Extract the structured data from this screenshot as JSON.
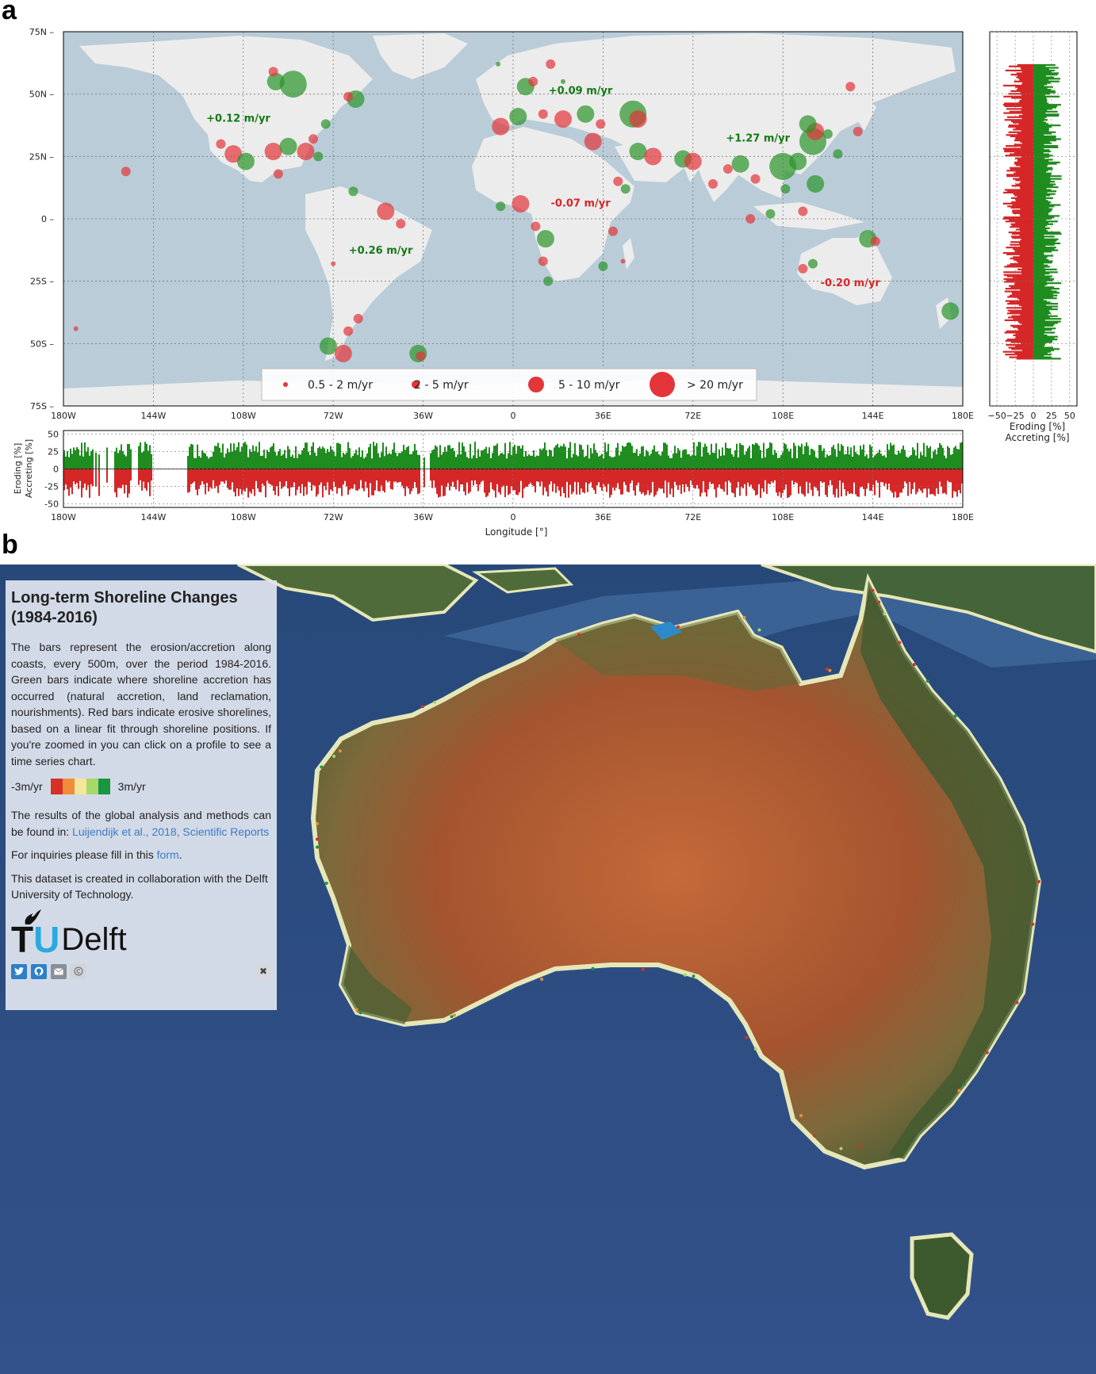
{
  "panel_a": {
    "letter": "a",
    "legend_items": [
      "0.5 - 2 m/yr",
      "2 - 5 m/yr",
      "5 - 10 m/yr",
      "> 20 m/yr"
    ],
    "map_lat_ticks": [
      "75N",
      "50N",
      "25N",
      "0",
      "25S",
      "50S",
      "75S"
    ],
    "map_lon_ticks": [
      "180W",
      "144W",
      "108W",
      "72W",
      "36W",
      "0",
      "36E",
      "72E",
      "108E",
      "144E",
      "180E"
    ],
    "colors": {
      "eroding": "#d62728",
      "accreting": "#1e8c1e",
      "ocean": "#b9ccd7",
      "land": "#ececec"
    }
  },
  "panel_b": {
    "letter": "b",
    "title": "Long-term Shoreline Changes (1984-2016)",
    "description": "The bars represent the erosion/accretion along coasts, every 500m, over the period 1984-2016. Green bars indicate where shoreline accretion has occurred (natural accretion, land reclamation, nourishments). Red bars indicate erosive shorelines, based on a linear fit through shoreline positions. If you're zoomed in you can click on a profile to see a time series chart.",
    "legend_min": "-3m/yr",
    "legend_max": "3m/yr",
    "legend_colors": [
      "#d73027",
      "#f08c3a",
      "#f5e69a",
      "#a6d96a",
      "#1a9641"
    ],
    "results_text": "The results of the global analysis and methods can be found in:",
    "results_link": "Luijendijk et al., 2018, Scientific Reports",
    "inquiries_text": "For inquiries please fill in this",
    "inquiries_link": "form",
    "inquiries_end": ".",
    "collab_text": "This dataset is created in collaboration with the Delft University of Technology.",
    "logo_t": "T",
    "logo_u": "U",
    "logo_delft": "Delft",
    "icons": [
      "twitter-icon",
      "github-icon",
      "mail-icon",
      "copyright-icon"
    ],
    "close_label": "✖"
  },
  "chart_data": [
    {
      "type": "scatter",
      "title": "",
      "xlabel": "",
      "ylabel": "",
      "xlim": [
        -180,
        180
      ],
      "ylim": [
        -75,
        75
      ],
      "x_ticks": [
        "180W",
        "144W",
        "108W",
        "72W",
        "36W",
        "0",
        "36E",
        "72E",
        "108E",
        "144E",
        "180E"
      ],
      "y_ticks": [
        "75N",
        "50N",
        "25N",
        "0",
        "25S",
        "50S",
        "75S"
      ],
      "annotations": [
        {
          "text": "+0.12 m/yr",
          "lon": -110,
          "lat": 39,
          "sign": "accreting"
        },
        {
          "text": "+0.09 m/yr",
          "lon": 27,
          "lat": 50,
          "sign": "accreting"
        },
        {
          "text": "+1.27 m/yr",
          "lon": 98,
          "lat": 31,
          "sign": "accreting"
        },
        {
          "text": "-0.07 m/yr",
          "lon": 27,
          "lat": 5,
          "sign": "eroding"
        },
        {
          "text": "+0.26 m/yr",
          "lon": -53,
          "lat": -14,
          "sign": "accreting"
        },
        {
          "text": "-0.20 m/yr",
          "lon": 135,
          "lat": -27,
          "sign": "eroding"
        }
      ],
      "series": [
        {
          "name": "0.5 - 2 m/yr",
          "points": []
        },
        {
          "name": "2 - 5 m/yr",
          "points": []
        },
        {
          "name": "5 - 10 m/yr",
          "points": []
        },
        {
          "name": "> 20 m/yr",
          "points": []
        }
      ],
      "points": [
        {
          "lon": -95,
          "lat": 55,
          "size": 3,
          "sign": "acc"
        },
        {
          "lon": -88,
          "lat": 54,
          "size": 4,
          "sign": "acc"
        },
        {
          "lon": -96,
          "lat": 59,
          "size": 2,
          "sign": "ero"
        },
        {
          "lon": -63,
          "lat": 48,
          "size": 3,
          "sign": "acc"
        },
        {
          "lon": -66,
          "lat": 49,
          "size": 2,
          "sign": "ero"
        },
        {
          "lon": -75,
          "lat": 38,
          "size": 2,
          "sign": "acc"
        },
        {
          "lon": -80,
          "lat": 32,
          "size": 2,
          "sign": "ero"
        },
        {
          "lon": -117,
          "lat": 30,
          "size": 2,
          "sign": "ero"
        },
        {
          "lon": -112,
          "lat": 26,
          "size": 3,
          "sign": "ero"
        },
        {
          "lon": -107,
          "lat": 23,
          "size": 3,
          "sign": "acc"
        },
        {
          "lon": -96,
          "lat": 27,
          "size": 3,
          "sign": "ero"
        },
        {
          "lon": -90,
          "lat": 29,
          "size": 3,
          "sign": "acc"
        },
        {
          "lon": -83,
          "lat": 27,
          "size": 3,
          "sign": "ero"
        },
        {
          "lon": -78,
          "lat": 25,
          "size": 2,
          "sign": "acc"
        },
        {
          "lon": -94,
          "lat": 18,
          "size": 2,
          "sign": "ero"
        },
        {
          "lon": -155,
          "lat": 19,
          "size": 2,
          "sign": "ero"
        },
        {
          "lon": -64,
          "lat": 11,
          "size": 2,
          "sign": "acc"
        },
        {
          "lon": -51,
          "lat": 3,
          "size": 3,
          "sign": "ero"
        },
        {
          "lon": -45,
          "lat": -2,
          "size": 2,
          "sign": "ero"
        },
        {
          "lon": -72,
          "lat": -18,
          "size": 1,
          "sign": "ero"
        },
        {
          "lon": -62,
          "lat": -40,
          "size": 2,
          "sign": "ero"
        },
        {
          "lon": -66,
          "lat": -45,
          "size": 2,
          "sign": "ero"
        },
        {
          "lon": -74,
          "lat": -51,
          "size": 3,
          "sign": "acc"
        },
        {
          "lon": -68,
          "lat": -54,
          "size": 3,
          "sign": "ero"
        },
        {
          "lon": -38,
          "lat": -54,
          "size": 3,
          "sign": "acc"
        },
        {
          "lon": -37,
          "lat": -55,
          "size": 2,
          "sign": "ero"
        },
        {
          "lon": -175,
          "lat": -44,
          "size": 1,
          "sign": "ero"
        },
        {
          "lon": -6,
          "lat": 62,
          "size": 1,
          "sign": "acc"
        },
        {
          "lon": 15,
          "lat": 62,
          "size": 2,
          "sign": "ero"
        },
        {
          "lon": 5,
          "lat": 53,
          "size": 3,
          "sign": "acc"
        },
        {
          "lon": 8,
          "lat": 55,
          "size": 2,
          "sign": "ero"
        },
        {
          "lon": 20,
          "lat": 55,
          "size": 1,
          "sign": "acc"
        },
        {
          "lon": -5,
          "lat": 37,
          "size": 3,
          "sign": "ero"
        },
        {
          "lon": 2,
          "lat": 41,
          "size": 3,
          "sign": "acc"
        },
        {
          "lon": 12,
          "lat": 42,
          "size": 2,
          "sign": "ero"
        },
        {
          "lon": 20,
          "lat": 40,
          "size": 3,
          "sign": "ero"
        },
        {
          "lon": 29,
          "lat": 42,
          "size": 3,
          "sign": "acc"
        },
        {
          "lon": 35,
          "lat": 38,
          "size": 2,
          "sign": "ero"
        },
        {
          "lon": 48,
          "lat": 42,
          "size": 4,
          "sign": "acc"
        },
        {
          "lon": 50,
          "lat": 40,
          "size": 3,
          "sign": "ero"
        },
        {
          "lon": 32,
          "lat": 31,
          "size": 3,
          "sign": "ero"
        },
        {
          "lon": 50,
          "lat": 27,
          "size": 3,
          "sign": "acc"
        },
        {
          "lon": 56,
          "lat": 25,
          "size": 3,
          "sign": "ero"
        },
        {
          "lon": 68,
          "lat": 24,
          "size": 3,
          "sign": "acc"
        },
        {
          "lon": 72,
          "lat": 23,
          "size": 3,
          "sign": "ero"
        },
        {
          "lon": 42,
          "lat": 15,
          "size": 2,
          "sign": "ero"
        },
        {
          "lon": 45,
          "lat": 12,
          "size": 2,
          "sign": "acc"
        },
        {
          "lon": 3,
          "lat": 6,
          "size": 3,
          "sign": "ero"
        },
        {
          "lon": -5,
          "lat": 5,
          "size": 2,
          "sign": "acc"
        },
        {
          "lon": 9,
          "lat": -3,
          "size": 2,
          "sign": "ero"
        },
        {
          "lon": 13,
          "lat": -8,
          "size": 3,
          "sign": "acc"
        },
        {
          "lon": 12,
          "lat": -17,
          "size": 2,
          "sign": "ero"
        },
        {
          "lon": 14,
          "lat": -25,
          "size": 2,
          "sign": "acc"
        },
        {
          "lon": 36,
          "lat": -19,
          "size": 2,
          "sign": "acc"
        },
        {
          "lon": 44,
          "lat": -17,
          "size": 1,
          "sign": "ero"
        },
        {
          "lon": 40,
          "lat": -5,
          "size": 2,
          "sign": "ero"
        },
        {
          "lon": 80,
          "lat": 14,
          "size": 2,
          "sign": "ero"
        },
        {
          "lon": 91,
          "lat": 22,
          "size": 3,
          "sign": "acc"
        },
        {
          "lon": 86,
          "lat": 20,
          "size": 2,
          "sign": "ero"
        },
        {
          "lon": 97,
          "lat": 16,
          "size": 2,
          "sign": "ero"
        },
        {
          "lon": 108,
          "lat": 21,
          "size": 4,
          "sign": "acc"
        },
        {
          "lon": 114,
          "lat": 23,
          "size": 3,
          "sign": "acc"
        },
        {
          "lon": 120,
          "lat": 31,
          "size": 4,
          "sign": "acc"
        },
        {
          "lon": 121,
          "lat": 35,
          "size": 3,
          "sign": "ero"
        },
        {
          "lon": 118,
          "lat": 38,
          "size": 3,
          "sign": "acc"
        },
        {
          "lon": 126,
          "lat": 34,
          "size": 2,
          "sign": "acc"
        },
        {
          "lon": 130,
          "lat": 26,
          "size": 2,
          "sign": "acc"
        },
        {
          "lon": 121,
          "lat": 14,
          "size": 3,
          "sign": "acc"
        },
        {
          "lon": 109,
          "lat": 12,
          "size": 2,
          "sign": "acc"
        },
        {
          "lon": 103,
          "lat": 2,
          "size": 2,
          "sign": "acc"
        },
        {
          "lon": 95,
          "lat": 0,
          "size": 2,
          "sign": "ero"
        },
        {
          "lon": 116,
          "lat": 3,
          "size": 2,
          "sign": "ero"
        },
        {
          "lon": 138,
          "lat": 35,
          "size": 2,
          "sign": "ero"
        },
        {
          "lon": 135,
          "lat": 53,
          "size": 2,
          "sign": "ero"
        },
        {
          "lon": 142,
          "lat": -8,
          "size": 3,
          "sign": "acc"
        },
        {
          "lon": 145,
          "lat": -9,
          "size": 2,
          "sign": "ero"
        },
        {
          "lon": 120,
          "lat": -18,
          "size": 2,
          "sign": "acc"
        },
        {
          "lon": 116,
          "lat": -20,
          "size": 2,
          "sign": "ero"
        },
        {
          "lon": 175,
          "lat": -37,
          "size": 3,
          "sign": "acc"
        }
      ]
    },
    {
      "type": "bar",
      "title": "",
      "xlabel": "Longitude [°]",
      "ylabel": "Eroding [%]\nAccreting [%]",
      "ylabel_top": "Accreting [%]",
      "ylabel_bottom": "Eroding [%]",
      "xlim": [
        -180,
        180
      ],
      "ylim": [
        -55,
        55
      ],
      "x_ticks": [
        "180W",
        "144W",
        "108W",
        "72W",
        "36W",
        "0",
        "36E",
        "72E",
        "108E",
        "144E",
        "180E"
      ],
      "y_ticks": [
        "50",
        "25",
        "0",
        "-25",
        "-50"
      ],
      "series": [
        {
          "name": "Accreting",
          "color": "#1e8c1e",
          "mean_value": 30
        },
        {
          "name": "Eroding",
          "color": "#d62728",
          "mean_value": -32
        }
      ]
    },
    {
      "type": "bar",
      "title": "",
      "xlabel": "Eroding [%]\nAccreting [%]",
      "xlabel_line1": "Eroding [%]",
      "xlabel_line2": "Accreting [%]",
      "ylabel": "",
      "xlim": [
        -60,
        60
      ],
      "ylim": [
        -75,
        75
      ],
      "x_ticks": [
        "−50",
        "−25",
        "0",
        "25",
        "50"
      ],
      "series": [
        {
          "name": "Accreting",
          "color": "#1e8c1e",
          "mean_value": 28
        },
        {
          "name": "Eroding",
          "color": "#d62728",
          "mean_value": -30
        }
      ]
    }
  ]
}
